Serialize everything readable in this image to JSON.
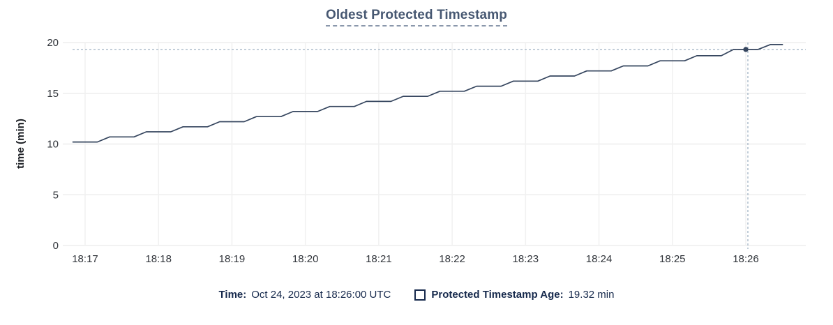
{
  "header": {
    "title": "Oldest Protected Timestamp"
  },
  "footer": {
    "time_label": "Time:",
    "time_value": "Oct 24, 2023 at 18:26:00 UTC",
    "series_label": "Protected Timestamp Age:",
    "series_value": "19.32 min",
    "swatch_icon": "square-outline-icon"
  },
  "colors": {
    "title": "#475872",
    "title_underline": "#8a97ab",
    "axis_text": "#30343a",
    "axis_label_text": "#1b1e23",
    "grid": "#ededed",
    "grid_vertical": "#f1f1f1",
    "line": "#35455e",
    "crosshair": "#a9b9c8",
    "footer_text": "#16294c"
  },
  "chart_data": {
    "type": "line",
    "title": "Oldest Protected Timestamp",
    "xlabel": "",
    "ylabel": "time (min)",
    "ylim": [
      0,
      20
    ],
    "yticks": [
      0,
      5,
      10,
      15,
      20
    ],
    "xticks": [
      "18:17",
      "18:18",
      "18:19",
      "18:20",
      "18:21",
      "18:22",
      "18:23",
      "18:24",
      "18:25",
      "18:26"
    ],
    "x_seconds_per_tick": 60,
    "grid": true,
    "legend_position": "bottom",
    "series": [
      {
        "name": "Protected Timestamp Age",
        "unit": "min",
        "points": [
          [
            -10,
            10.2
          ],
          [
            0,
            10.2
          ],
          [
            10,
            10.2
          ],
          [
            20,
            10.7
          ],
          [
            30,
            10.7
          ],
          [
            40,
            10.7
          ],
          [
            50,
            11.2
          ],
          [
            60,
            11.2
          ],
          [
            70,
            11.2
          ],
          [
            80,
            11.7
          ],
          [
            90,
            11.7
          ],
          [
            100,
            11.7
          ],
          [
            110,
            12.2
          ],
          [
            120,
            12.2
          ],
          [
            130,
            12.2
          ],
          [
            140,
            12.7
          ],
          [
            150,
            12.7
          ],
          [
            160,
            12.7
          ],
          [
            170,
            13.2
          ],
          [
            180,
            13.2
          ],
          [
            190,
            13.2
          ],
          [
            200,
            13.7
          ],
          [
            210,
            13.7
          ],
          [
            220,
            13.7
          ],
          [
            230,
            14.2
          ],
          [
            240,
            14.2
          ],
          [
            250,
            14.2
          ],
          [
            260,
            14.7
          ],
          [
            270,
            14.7
          ],
          [
            280,
            14.7
          ],
          [
            290,
            15.2
          ],
          [
            300,
            15.2
          ],
          [
            310,
            15.2
          ],
          [
            320,
            15.7
          ],
          [
            330,
            15.7
          ],
          [
            340,
            15.7
          ],
          [
            350,
            16.2
          ],
          [
            360,
            16.2
          ],
          [
            370,
            16.2
          ],
          [
            380,
            16.7
          ],
          [
            390,
            16.7
          ],
          [
            400,
            16.7
          ],
          [
            410,
            17.2
          ],
          [
            420,
            17.2
          ],
          [
            430,
            17.2
          ],
          [
            440,
            17.7
          ],
          [
            450,
            17.7
          ],
          [
            460,
            17.7
          ],
          [
            470,
            18.2
          ],
          [
            480,
            18.2
          ],
          [
            490,
            18.2
          ],
          [
            500,
            18.7
          ],
          [
            510,
            18.7
          ],
          [
            520,
            18.7
          ],
          [
            530,
            19.32
          ],
          [
            540,
            19.32
          ],
          [
            550,
            19.32
          ],
          [
            560,
            19.8
          ],
          [
            570,
            19.8
          ]
        ]
      }
    ],
    "hover": {
      "x_seconds": 540,
      "x_tick_label": "18:26",
      "time_label": "Oct 24, 2023 at 18:26:00 UTC",
      "value": 19.32,
      "value_label": "19.32 min"
    }
  }
}
